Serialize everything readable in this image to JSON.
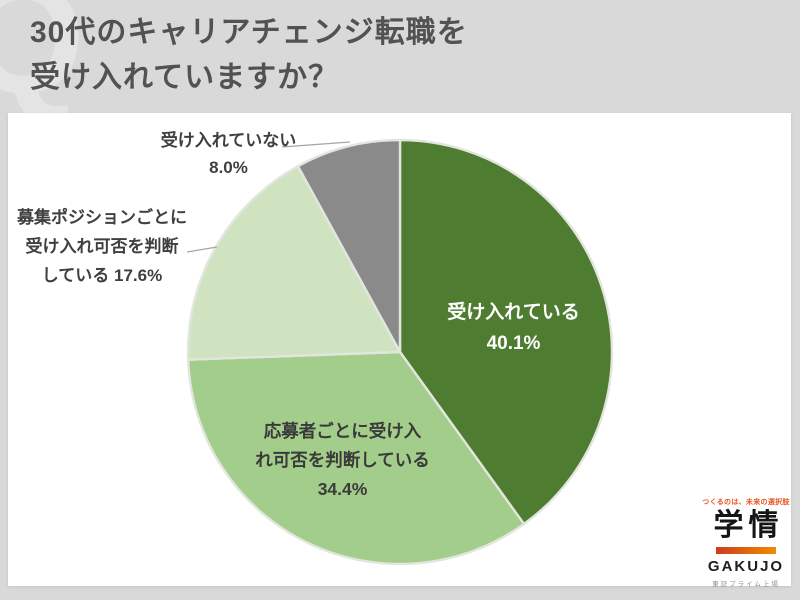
{
  "page": {
    "background": "#d9d9d9",
    "watermark": "Q"
  },
  "header": {
    "title_line1": "30代のキャリアチェンジ転職を",
    "title_line2": "受け入れていますか？",
    "color": "#525252"
  },
  "chart_data": {
    "type": "pie",
    "title": "30代のキャリアチェンジ転職を受け入れていますか？",
    "start_angle_deg": 0,
    "direction": "clockwise",
    "legend_position": "none",
    "stroke_color": "#e2e6de",
    "slices": [
      {
        "label": "受け入れている",
        "value": 40.1,
        "color": "#4e7c31",
        "label_color": "#ffffff",
        "label_position": "inside"
      },
      {
        "label": "応募者ごとに受け入れ可否を判断している",
        "value": 34.4,
        "color": "#a3cd8a",
        "label_color": "#3a3a3a",
        "label_position": "inside"
      },
      {
        "label": "募集ポジションごとに受け入れ可否を判断している",
        "value": 17.6,
        "color": "#cfe3c0",
        "label_color": "#3f3f3f",
        "label_position": "outside"
      },
      {
        "label": "受け入れていない",
        "value": 8.0,
        "color": "#8a8a8a",
        "label_color": "#3f3f3f",
        "label_position": "outside"
      }
    ]
  },
  "labels": {
    "accepting": {
      "line1": "受け入れている",
      "line2": "40.1%"
    },
    "per_applicant": {
      "line1": "応募者ごとに受け入",
      "line2": "れ可否を判断している",
      "line3": "34.4%"
    },
    "per_position": {
      "line1": "募集ポジションごとに",
      "line2": "受け入れ可否を判断",
      "line3": "している 17.6%"
    },
    "not_accepting": {
      "line1": "受け入れていない",
      "line2": "8.0%"
    }
  },
  "logo": {
    "tagline": "つくるのは、未来の選択肢",
    "name_jp": "学情",
    "name_en": "GAKUJO",
    "listing": "東証プライム上場",
    "accent_gradient_start": "#cf3a1c",
    "accent_gradient_end": "#f08c00"
  }
}
